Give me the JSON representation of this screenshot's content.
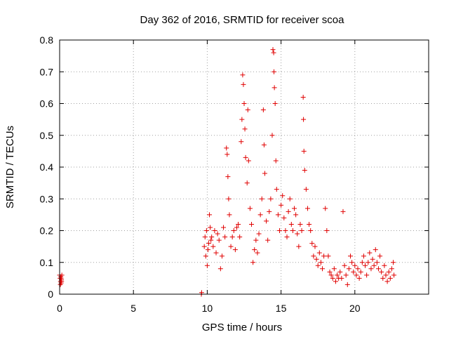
{
  "chart_data": {
    "type": "scatter",
    "title": "Day 362 of 2016, SRMTID for receiver scoa",
    "xlabel": "GPS time / hours",
    "ylabel": "SRMTID / TECUs",
    "xlim": [
      0,
      25
    ],
    "ylim": [
      0,
      0.8
    ],
    "grid": true,
    "marker": "+",
    "series_color": "#e00000",
    "x_ticks": [
      0,
      5,
      10,
      15,
      20
    ],
    "x_tick_labels": [
      "0",
      "5",
      "10",
      "15",
      "20"
    ],
    "y_ticks": [
      0,
      0.1,
      0.2,
      0.3,
      0.4,
      0.5,
      0.6,
      0.7,
      0.8
    ],
    "y_tick_labels": [
      "0",
      "0.1",
      "0.2",
      "0.3",
      "0.4",
      "0.5",
      "0.6",
      "0.7",
      "0.8"
    ],
    "series": [
      {
        "name": "SRMTID",
        "points": [
          [
            0.0,
            0.06
          ],
          [
            0.03,
            0.05
          ],
          [
            0.06,
            0.04
          ],
          [
            0.08,
            0.055
          ],
          [
            0.1,
            0.035
          ],
          [
            0.12,
            0.045
          ],
          [
            0.15,
            0.06
          ],
          [
            0.05,
            0.03
          ],
          [
            0.1,
            0.05
          ],
          [
            0.13,
            0.04
          ],
          [
            9.6,
            0.0
          ],
          [
            9.62,
            0.005
          ],
          [
            9.8,
            0.15
          ],
          [
            9.85,
            0.18
          ],
          [
            9.9,
            0.12
          ],
          [
            9.95,
            0.2
          ],
          [
            10.0,
            0.09
          ],
          [
            10.05,
            0.14
          ],
          [
            10.1,
            0.16
          ],
          [
            10.15,
            0.25
          ],
          [
            10.2,
            0.21
          ],
          [
            10.25,
            0.17
          ],
          [
            10.3,
            0.18
          ],
          [
            10.4,
            0.15
          ],
          [
            10.5,
            0.2
          ],
          [
            10.6,
            0.13
          ],
          [
            10.7,
            0.19
          ],
          [
            10.8,
            0.17
          ],
          [
            10.9,
            0.08
          ],
          [
            11.0,
            0.12
          ],
          [
            11.1,
            0.21
          ],
          [
            11.2,
            0.18
          ],
          [
            11.3,
            0.46
          ],
          [
            11.35,
            0.44
          ],
          [
            11.4,
            0.37
          ],
          [
            11.45,
            0.3
          ],
          [
            11.5,
            0.25
          ],
          [
            11.6,
            0.15
          ],
          [
            11.7,
            0.18
          ],
          [
            11.8,
            0.2
          ],
          [
            11.9,
            0.14
          ],
          [
            12.0,
            0.21
          ],
          [
            12.1,
            0.22
          ],
          [
            12.2,
            0.18
          ],
          [
            12.3,
            0.48
          ],
          [
            12.35,
            0.55
          ],
          [
            12.4,
            0.69
          ],
          [
            12.45,
            0.66
          ],
          [
            12.5,
            0.6
          ],
          [
            12.55,
            0.52
          ],
          [
            12.6,
            0.43
          ],
          [
            12.7,
            0.35
          ],
          [
            12.75,
            0.58
          ],
          [
            12.8,
            0.42
          ],
          [
            12.9,
            0.27
          ],
          [
            13.0,
            0.22
          ],
          [
            13.1,
            0.1
          ],
          [
            13.2,
            0.14
          ],
          [
            13.3,
            0.17
          ],
          [
            13.4,
            0.13
          ],
          [
            13.5,
            0.19
          ],
          [
            13.6,
            0.25
          ],
          [
            13.7,
            0.3
          ],
          [
            13.8,
            0.58
          ],
          [
            13.85,
            0.47
          ],
          [
            13.9,
            0.38
          ],
          [
            14.0,
            0.23
          ],
          [
            14.1,
            0.17
          ],
          [
            14.2,
            0.26
          ],
          [
            14.3,
            0.3
          ],
          [
            14.4,
            0.5
          ],
          [
            14.45,
            0.77
          ],
          [
            14.5,
            0.76
          ],
          [
            14.52,
            0.7
          ],
          [
            14.55,
            0.65
          ],
          [
            14.6,
            0.6
          ],
          [
            14.65,
            0.42
          ],
          [
            14.7,
            0.33
          ],
          [
            14.8,
            0.25
          ],
          [
            14.9,
            0.2
          ],
          [
            15.0,
            0.28
          ],
          [
            15.1,
            0.31
          ],
          [
            15.2,
            0.24
          ],
          [
            15.3,
            0.2
          ],
          [
            15.4,
            0.18
          ],
          [
            15.5,
            0.26
          ],
          [
            15.6,
            0.3
          ],
          [
            15.7,
            0.22
          ],
          [
            15.8,
            0.2
          ],
          [
            15.9,
            0.27
          ],
          [
            16.0,
            0.25
          ],
          [
            16.1,
            0.19
          ],
          [
            16.2,
            0.15
          ],
          [
            16.3,
            0.22
          ],
          [
            16.4,
            0.2
          ],
          [
            16.5,
            0.62
          ],
          [
            16.52,
            0.55
          ],
          [
            16.55,
            0.45
          ],
          [
            16.6,
            0.39
          ],
          [
            16.7,
            0.33
          ],
          [
            16.8,
            0.27
          ],
          [
            16.9,
            0.22
          ],
          [
            17.0,
            0.2
          ],
          [
            17.1,
            0.16
          ],
          [
            17.2,
            0.12
          ],
          [
            17.3,
            0.15
          ],
          [
            17.4,
            0.11
          ],
          [
            17.5,
            0.09
          ],
          [
            17.6,
            0.13
          ],
          [
            17.7,
            0.1
          ],
          [
            17.8,
            0.08
          ],
          [
            17.9,
            0.12
          ],
          [
            18.0,
            0.27
          ],
          [
            18.1,
            0.2
          ],
          [
            18.2,
            0.12
          ],
          [
            18.3,
            0.07
          ],
          [
            18.4,
            0.06
          ],
          [
            18.5,
            0.05
          ],
          [
            18.6,
            0.08
          ],
          [
            18.7,
            0.04
          ],
          [
            18.8,
            0.06
          ],
          [
            18.9,
            0.05
          ],
          [
            19.0,
            0.07
          ],
          [
            19.1,
            0.05
          ],
          [
            19.2,
            0.26
          ],
          [
            19.3,
            0.09
          ],
          [
            19.4,
            0.06
          ],
          [
            19.5,
            0.03
          ],
          [
            19.6,
            0.08
          ],
          [
            19.7,
            0.12
          ],
          [
            19.8,
            0.1
          ],
          [
            19.9,
            0.07
          ],
          [
            20.0,
            0.09
          ],
          [
            20.1,
            0.06
          ],
          [
            20.2,
            0.08
          ],
          [
            20.3,
            0.05
          ],
          [
            20.4,
            0.07
          ],
          [
            20.5,
            0.1
          ],
          [
            20.6,
            0.12
          ],
          [
            20.7,
            0.09
          ],
          [
            20.8,
            0.06
          ],
          [
            20.9,
            0.1
          ],
          [
            21.0,
            0.13
          ],
          [
            21.1,
            0.08
          ],
          [
            21.2,
            0.11
          ],
          [
            21.3,
            0.09
          ],
          [
            21.4,
            0.14
          ],
          [
            21.5,
            0.1
          ],
          [
            21.6,
            0.08
          ],
          [
            21.7,
            0.12
          ],
          [
            21.8,
            0.07
          ],
          [
            21.9,
            0.05
          ],
          [
            22.0,
            0.09
          ],
          [
            22.1,
            0.06
          ],
          [
            22.2,
            0.04
          ],
          [
            22.3,
            0.07
          ],
          [
            22.4,
            0.05
          ],
          [
            22.5,
            0.08
          ],
          [
            22.6,
            0.1
          ],
          [
            22.65,
            0.06
          ]
        ]
      }
    ]
  }
}
